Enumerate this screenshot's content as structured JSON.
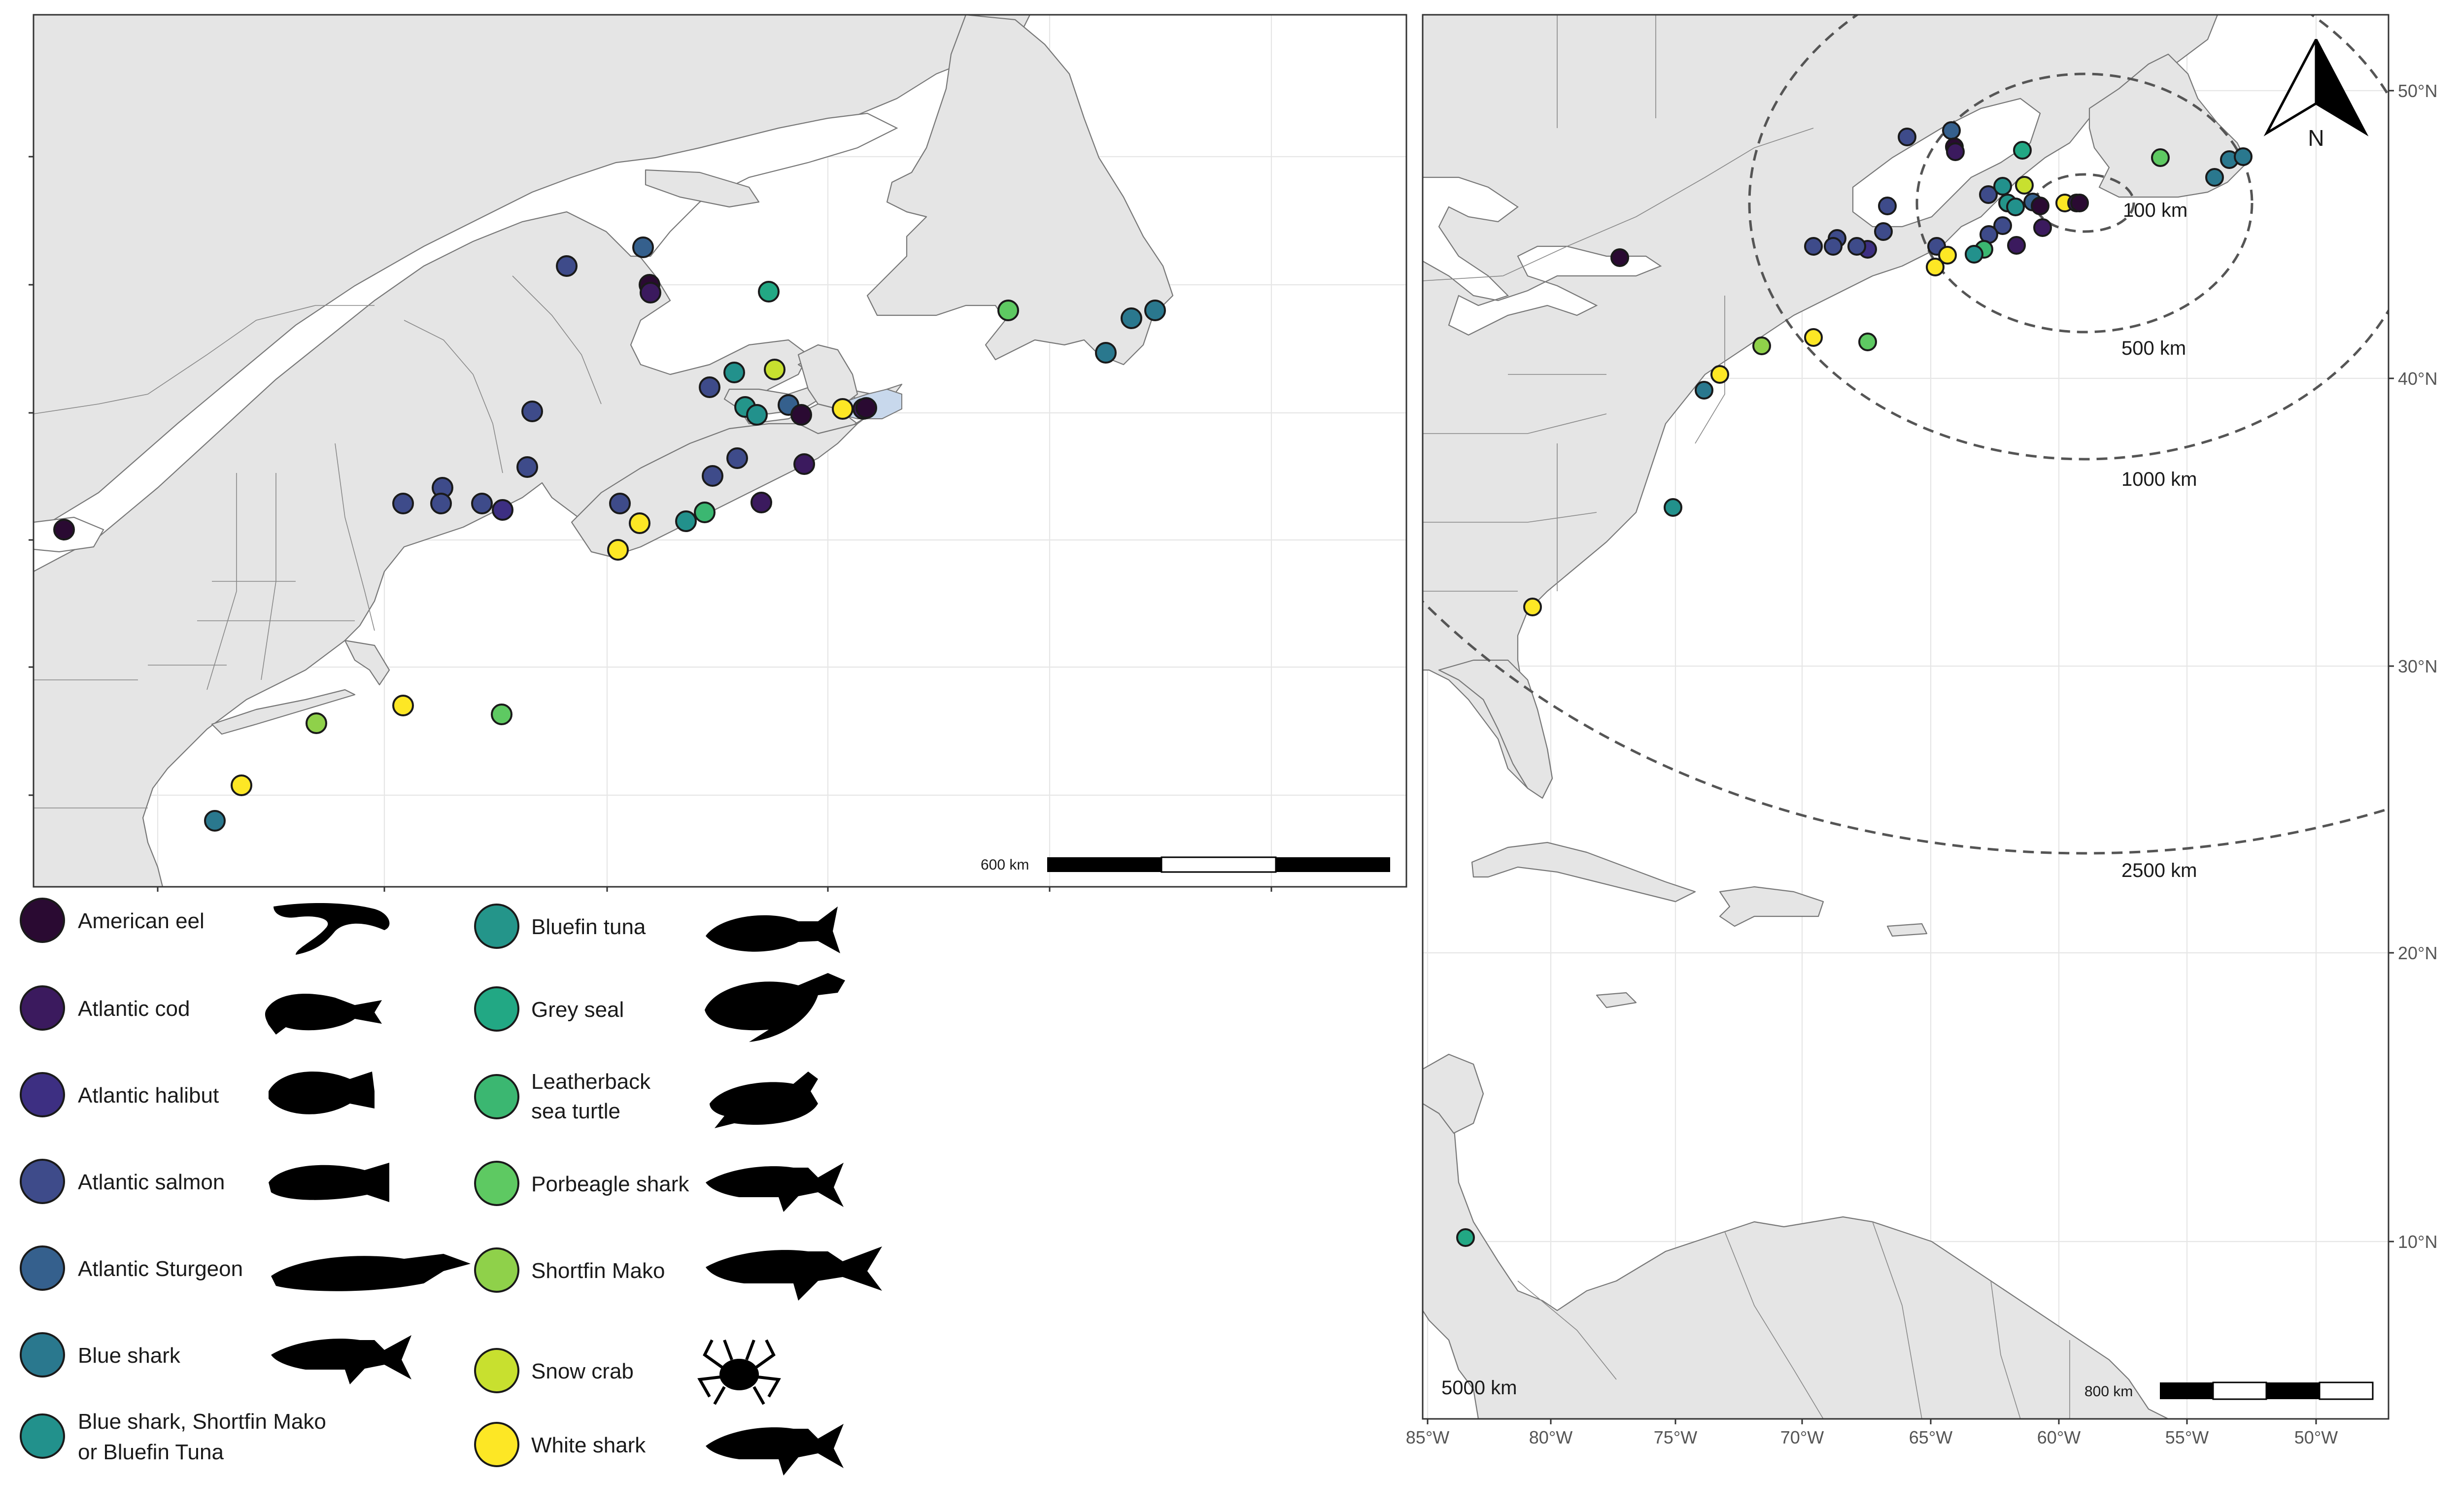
{
  "colors": {
    "american_eel": "#2a0a32",
    "atlantic_cod": "#3b1a5e",
    "atlantic_halibut": "#3d2f82",
    "atlantic_salmon": "#3e4b8a",
    "atlantic_sturgeon": "#35608d",
    "blue_shark": "#2a788e",
    "blue_shark_mako_tuna": "#22918c",
    "bluefin_tuna": "#24958a",
    "grey_seal": "#22a884",
    "leatherback": "#3bb771",
    "porbeagle": "#5ec962",
    "shortfin_mako": "#8fd14a",
    "snow_crab": "#c8e02f",
    "white_shark": "#fde725"
  },
  "left_map": {
    "scale_bar_label": "600 km"
  },
  "right_map": {
    "scale_bar_label": "800 km",
    "north_label": "N",
    "lat_ticks": [
      "50°N",
      "40°N",
      "30°N",
      "20°N",
      "10°N"
    ],
    "lon_ticks": [
      "85°W",
      "80°W",
      "75°W",
      "70°W",
      "65°W",
      "60°W",
      "55°W",
      "50°W"
    ],
    "distance_labels": [
      "100 km",
      "500 km",
      "1000 km",
      "2500 km",
      "5000 km"
    ]
  },
  "legend": {
    "items": [
      {
        "label": "American eel",
        "color": "#2a0a32",
        "icon": "eel-silhouette"
      },
      {
        "label": "Atlantic cod",
        "color": "#3b1a5e",
        "icon": "cod-silhouette"
      },
      {
        "label": "Atlantic halibut",
        "color": "#3d2f82",
        "icon": "halibut-silhouette"
      },
      {
        "label": "Atlantic salmon",
        "color": "#3e4b8a",
        "icon": "salmon-silhouette"
      },
      {
        "label": "Atlantic Sturgeon",
        "color": "#35608d",
        "icon": "sturgeon-silhouette"
      },
      {
        "label": "Blue shark",
        "color": "#2a788e",
        "icon": "shark-silhouette"
      },
      {
        "label_line1": "Blue shark, Shortfin Mako",
        "label_line2": "or Bluefin Tuna",
        "color": "#22918c"
      },
      {
        "label": "Bluefin tuna",
        "color": "#24958a",
        "icon": "tuna-silhouette"
      },
      {
        "label": "Grey seal",
        "color": "#22a884",
        "icon": "seal-silhouette"
      },
      {
        "label_line1": "Leatherback",
        "label_line2": "sea turtle",
        "color": "#3bb771",
        "icon": "turtle-silhouette"
      },
      {
        "label": "Porbeagle shark",
        "color": "#5ec962",
        "icon": "shark-silhouette"
      },
      {
        "label": "Shortfin Mako",
        "color": "#8fd14a",
        "icon": "shark-silhouette"
      },
      {
        "label": "Snow crab",
        "color": "#c8e02f",
        "icon": "crab-silhouette"
      },
      {
        "label": "White shark",
        "color": "#fde725",
        "icon": "shark-silhouette"
      }
    ]
  }
}
